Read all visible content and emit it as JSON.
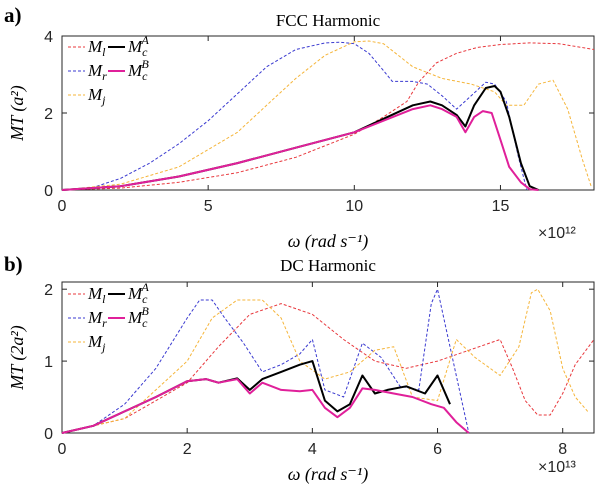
{
  "chart_data": [
    {
      "type": "line",
      "panel_label": "a)",
      "title": "FCC Harmonic",
      "xlabel": "ω (rad s⁻¹)",
      "ylabel": "MT (a²)",
      "x_multiplier": "×10¹²",
      "xlim": [
        0,
        18.2
      ],
      "ylim": [
        0,
        4
      ],
      "xticks": [
        0,
        5,
        10,
        15
      ],
      "yticks": [
        0,
        2,
        4
      ],
      "legend_placement": "top-left",
      "series": [
        {
          "name": "M_l",
          "color": "#e8383d",
          "dash": true,
          "x": [
            0,
            2,
            4,
            6,
            8,
            10,
            11,
            11.8,
            12.2,
            12.8,
            13.5,
            14.2,
            15,
            16,
            17,
            18.2
          ],
          "y": [
            0,
            0.05,
            0.2,
            0.45,
            0.85,
            1.45,
            1.9,
            2.3,
            2.8,
            3.3,
            3.55,
            3.7,
            3.78,
            3.82,
            3.8,
            3.65
          ]
        },
        {
          "name": "M_r",
          "color": "#3a3ad0",
          "dash": true,
          "x": [
            0,
            1,
            2,
            3,
            4,
            5,
            6,
            7,
            8,
            9,
            9.5,
            10,
            10.5,
            11,
            11.3,
            12,
            12.5,
            13,
            13.5,
            14,
            14.5,
            14.8,
            15.2,
            15.6,
            15.9
          ],
          "y": [
            0,
            0.05,
            0.3,
            0.7,
            1.2,
            1.8,
            2.5,
            3.2,
            3.65,
            3.82,
            3.84,
            3.8,
            3.55,
            3.1,
            2.82,
            2.82,
            2.75,
            2.45,
            2.1,
            2.45,
            2.8,
            2.75,
            2.3,
            0.9,
            0
          ]
        },
        {
          "name": "M_j",
          "color": "#f5b53a",
          "dash": true,
          "x": [
            0,
            2,
            4,
            6,
            7,
            8,
            9,
            10,
            10.5,
            11,
            12,
            13,
            14,
            14.8,
            15.2,
            15.8,
            16.3,
            16.8,
            17.3,
            17.8,
            18.1
          ],
          "y": [
            0,
            0.15,
            0.6,
            1.5,
            2.2,
            2.9,
            3.5,
            3.85,
            3.87,
            3.8,
            3.2,
            2.9,
            2.75,
            2.55,
            2.2,
            2.2,
            2.75,
            2.85,
            2.1,
            0.8,
            0.1
          ]
        },
        {
          "name": "M_c^A",
          "color": "#000000",
          "dash": false,
          "x": [
            0,
            2,
            4,
            6,
            8,
            10,
            11,
            12,
            12.6,
            13,
            13.5,
            13.8,
            14.1,
            14.5,
            14.8,
            15,
            15.3,
            15.7,
            16,
            16.3
          ],
          "y": [
            0,
            0.1,
            0.35,
            0.7,
            1.1,
            1.5,
            1.85,
            2.2,
            2.3,
            2.2,
            1.95,
            1.65,
            2.2,
            2.65,
            2.7,
            2.55,
            1.9,
            0.7,
            0.1,
            0
          ]
        },
        {
          "name": "M_c^B",
          "color": "#e0209a",
          "dash": false,
          "x": [
            0,
            2,
            4,
            6,
            8,
            10,
            11,
            12,
            12.6,
            13,
            13.5,
            13.8,
            14.1,
            14.4,
            14.7,
            15,
            15.3,
            15.7,
            16,
            16.3
          ],
          "y": [
            0,
            0.1,
            0.35,
            0.7,
            1.1,
            1.5,
            1.8,
            2.1,
            2.2,
            2.1,
            1.9,
            1.5,
            1.9,
            2.05,
            2.0,
            1.3,
            0.6,
            0.2,
            0.02,
            0
          ]
        }
      ]
    },
    {
      "type": "line",
      "panel_label": "b)",
      "title": "DC Harmonic",
      "xlabel": "ω (rad s⁻¹)",
      "ylabel": "MT (2a²)",
      "x_multiplier": "×10¹³",
      "xlim": [
        0,
        8.5
      ],
      "ylim": [
        0,
        2.1
      ],
      "xticks": [
        0,
        2,
        4,
        6,
        8
      ],
      "yticks": [
        0,
        1,
        2
      ],
      "legend_placement": "top-left",
      "series": [
        {
          "name": "M_l",
          "color": "#e8383d",
          "dash": true,
          "x": [
            0,
            1,
            2,
            2.5,
            3,
            3.5,
            4,
            4.5,
            5,
            5.5,
            6,
            6.5,
            7,
            7.2,
            7.4,
            7.6,
            7.8,
            8,
            8.2,
            8.5
          ],
          "y": [
            0,
            0.2,
            0.7,
            1.2,
            1.65,
            1.8,
            1.65,
            1.3,
            1.0,
            0.9,
            1.0,
            1.15,
            1.3,
            0.9,
            0.45,
            0.25,
            0.25,
            0.55,
            0.95,
            1.3
          ]
        },
        {
          "name": "M_r",
          "color": "#3a3ad0",
          "dash": true,
          "x": [
            0,
            0.5,
            1,
            1.5,
            2,
            2.2,
            2.4,
            2.6,
            2.9,
            3.2,
            3.5,
            3.8,
            4.0,
            4.2,
            4.5,
            4.8,
            5.1,
            5.4,
            5.7,
            5.9,
            6.0,
            6.2,
            6.5
          ],
          "y": [
            0,
            0.1,
            0.4,
            0.9,
            1.6,
            1.85,
            1.85,
            1.6,
            1.25,
            0.85,
            0.95,
            1.1,
            1.3,
            0.6,
            0.5,
            1.25,
            1.05,
            0.65,
            0.6,
            1.8,
            2.0,
            1.2,
            0
          ]
        },
        {
          "name": "M_j",
          "color": "#f5b53a",
          "dash": true,
          "x": [
            0,
            1,
            2,
            2.4,
            2.8,
            3.2,
            3.5,
            3.8,
            4.2,
            4.6,
            5.0,
            5.3,
            5.6,
            6.0,
            6.3,
            6.6,
            7.0,
            7.3,
            7.5,
            7.6,
            7.8,
            8.0,
            8.2,
            8.4
          ],
          "y": [
            0,
            0.2,
            1.0,
            1.6,
            1.85,
            1.85,
            1.6,
            1.0,
            0.75,
            0.85,
            1.15,
            1.2,
            0.5,
            0.45,
            1.3,
            1.05,
            0.8,
            1.2,
            1.95,
            2.0,
            1.7,
            0.9,
            0.5,
            0.3
          ]
        },
        {
          "name": "M_c^A",
          "color": "#000000",
          "dash": false,
          "x": [
            0,
            0.5,
            1,
            1.5,
            2,
            2.3,
            2.5,
            2.8,
            3.0,
            3.2,
            3.5,
            3.8,
            4.0,
            4.2,
            4.4,
            4.6,
            4.8,
            5.0,
            5.2,
            5.5,
            5.8,
            6.0,
            6.2
          ],
          "y": [
            0,
            0.1,
            0.3,
            0.5,
            0.72,
            0.75,
            0.7,
            0.76,
            0.6,
            0.75,
            0.85,
            0.95,
            1.0,
            0.45,
            0.3,
            0.4,
            0.8,
            0.55,
            0.6,
            0.65,
            0.55,
            0.8,
            0.4
          ]
        },
        {
          "name": "M_c^B",
          "color": "#e0209a",
          "dash": false,
          "x": [
            0,
            0.5,
            1,
            1.5,
            2,
            2.3,
            2.5,
            2.8,
            3.0,
            3.2,
            3.5,
            3.8,
            4.0,
            4.2,
            4.4,
            4.6,
            4.8,
            5.0,
            5.3,
            5.6,
            5.9,
            6.1,
            6.3,
            6.5
          ],
          "y": [
            0,
            0.1,
            0.3,
            0.5,
            0.72,
            0.75,
            0.7,
            0.75,
            0.55,
            0.7,
            0.6,
            0.58,
            0.6,
            0.35,
            0.22,
            0.35,
            0.62,
            0.6,
            0.55,
            0.5,
            0.4,
            0.35,
            0.15,
            0
          ]
        }
      ]
    }
  ]
}
